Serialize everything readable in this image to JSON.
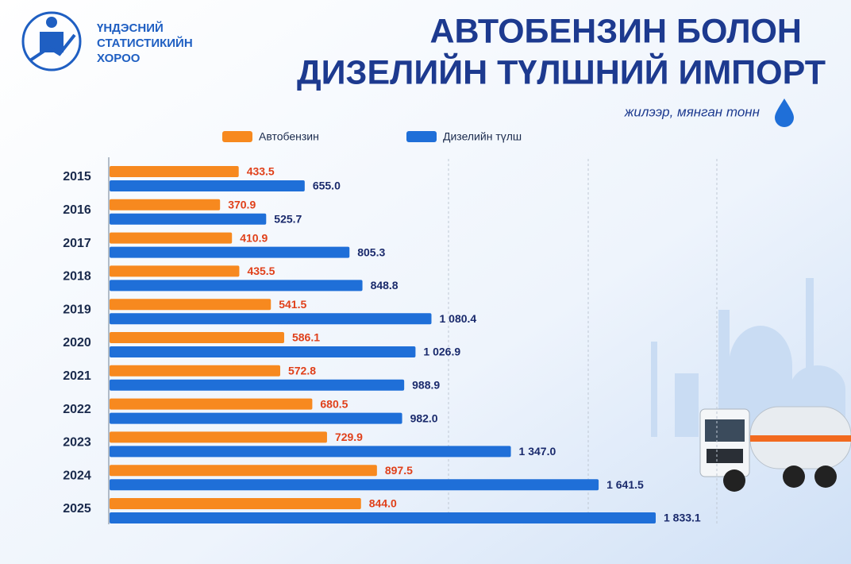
{
  "header": {
    "organization": [
      "ҮНДЭСНИЙ",
      "СТАТИСТИКИЙН",
      "ХОРОО"
    ]
  },
  "chart_data": {
    "type": "bar",
    "orientation": "horizontal",
    "title": [
      "АВТОБЕНЗИН БОЛОН",
      "ДИЗЕЛИЙН ТҮЛШНИЙ ИМПОРТ"
    ],
    "subtitle": "жилээр, мянган тонн",
    "categories": [
      "2015",
      "2016",
      "2017",
      "2018",
      "2019",
      "2020",
      "2021",
      "2022",
      "2023",
      "2024",
      "2025"
    ],
    "series": [
      {
        "name": "Автобензин",
        "color": "#f7891f",
        "label_color": "#e0401a",
        "values": [
          433.5,
          370.9,
          410.9,
          435.5,
          541.5,
          586.1,
          572.8,
          680.5,
          729.9,
          897.5,
          844.0
        ],
        "value_labels": [
          "433.5",
          "370.9",
          "410.9",
          "435.5",
          "541.5",
          "586.1",
          "572.8",
          "680.5",
          "729.9",
          "897.5",
          "844.0"
        ]
      },
      {
        "name": "Дизелийн түлш",
        "color": "#1f6fd8",
        "label_color": "#1a2a6c",
        "values": [
          655.0,
          525.7,
          805.3,
          848.8,
          1080.4,
          1026.9,
          988.9,
          982.0,
          1347.0,
          1641.5,
          1833.1
        ],
        "value_labels": [
          "655.0",
          "525.7",
          "805.3",
          "848.8",
          "1 080.4",
          "1 026.9",
          "988.9",
          "982.0",
          "1 347.0",
          "1 641.5",
          "1 833.1"
        ]
      }
    ]
  }
}
